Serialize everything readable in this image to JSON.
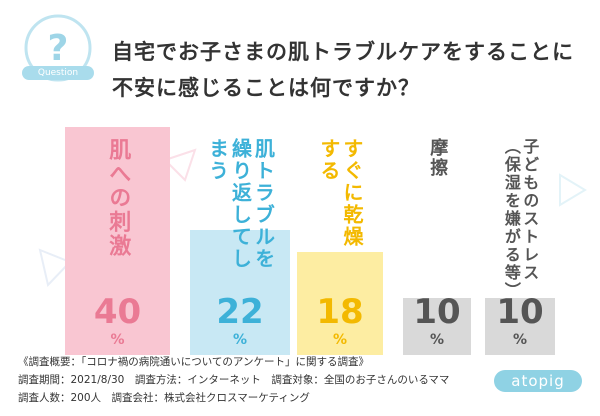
{
  "chart_data": {
    "type": "bar",
    "title": "自宅でお子さまの肌トラブルケアをすることに不安に感じることは何ですか？",
    "icon_label": "Question",
    "categories": [
      "肌への刺激",
      "肌トラブルを繰り返してしまう",
      "すぐに乾燥する",
      "摩擦",
      "子どものストレス（保湿を嫌がる等）"
    ],
    "values": [
      40,
      22,
      18,
      10,
      10
    ],
    "unit": "%",
    "colors": [
      "#f9c6d2",
      "#c8e8f4",
      "#fdeda2",
      "#d9d9d9",
      "#d9d9d9"
    ],
    "text_colors": [
      "#ea7a94",
      "#3db1d8",
      "#f3b900",
      "#555555",
      "#555555"
    ],
    "notes": [
      "《調査概要：「コロナ禍の病院通いについてのアンケート」に関する調査》",
      "調査期間：2021/8/30　調査方法：インターネット　調査対象：全国のお子さんのいるママ",
      "調査人数：200人　調査会社：株式会社クロスマーケティング"
    ],
    "brand": "atopig"
  }
}
